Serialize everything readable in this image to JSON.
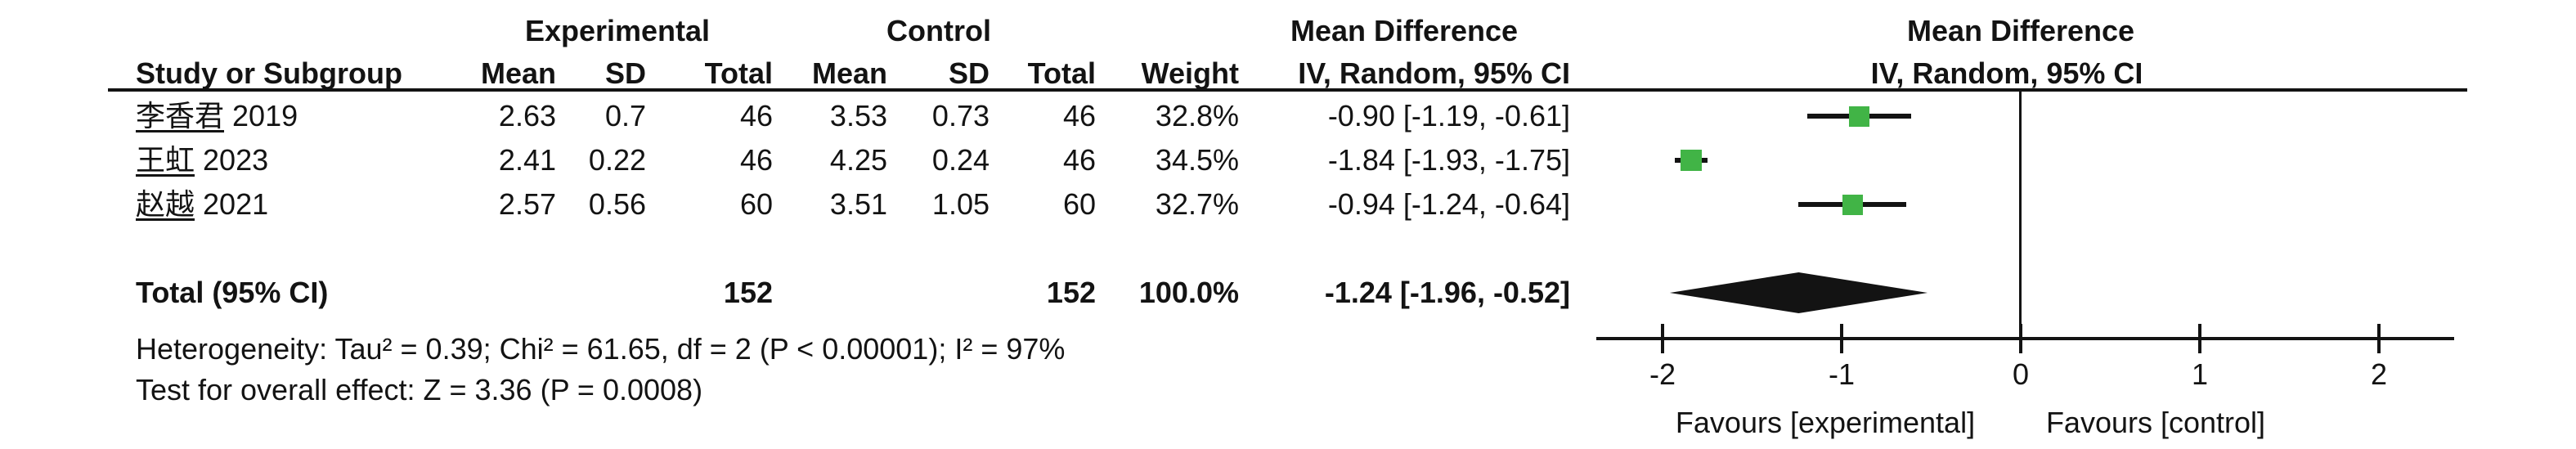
{
  "table": {
    "group_headers": {
      "experimental": "Experimental",
      "control": "Control",
      "md_table": "Mean Difference",
      "md_plot": "Mean Difference"
    },
    "col_headers": {
      "study": "Study or Subgroup",
      "mean_e": "Mean",
      "sd_e": "SD",
      "total_e": "Total",
      "mean_c": "Mean",
      "sd_c": "SD",
      "total_c": "Total",
      "weight": "Weight",
      "ci": "IV, Random, 95% CI",
      "ci_plot": "IV, Random, 95% CI"
    },
    "rows": [
      {
        "name": "李香君",
        "year": "2019",
        "mean_e": "2.63",
        "sd_e": "0.7",
        "total_e": "46",
        "mean_c": "3.53",
        "sd_c": "0.73",
        "total_c": "46",
        "weight": "32.8%",
        "ci": "-0.90 [-1.19, -0.61]"
      },
      {
        "name": "王虹",
        "year": "2023",
        "mean_e": "2.41",
        "sd_e": "0.22",
        "total_e": "46",
        "mean_c": "4.25",
        "sd_c": "0.24",
        "total_c": "46",
        "weight": "34.5%",
        "ci": "-1.84 [-1.93, -1.75]"
      },
      {
        "name": "赵越",
        "year": "2021",
        "mean_e": "2.57",
        "sd_e": "0.56",
        "total_e": "60",
        "mean_c": "3.51",
        "sd_c": "1.05",
        "total_c": "60",
        "weight": "32.7%",
        "ci": "-0.94 [-1.24, -0.64]"
      }
    ],
    "total_row": {
      "label": "Total (95% CI)",
      "total_e": "152",
      "total_c": "152",
      "weight": "100.0%",
      "ci": "-1.24 [-1.96, -0.52]"
    },
    "heterogeneity": "Heterogeneity: Tau² = 0.39; Chi² = 61.65, df = 2 (P < 0.00001); I² = 97%",
    "overall_effect": "Test for overall effect: Z = 3.36 (P = 0.0008)"
  },
  "chart_data": {
    "type": "forest",
    "effect_measure": "Mean Difference",
    "model": "IV, Random, 95% CI",
    "axis": {
      "min": -2,
      "max": 2,
      "ticks": [
        -2,
        -1,
        0,
        1,
        2
      ],
      "left_label": "Favours [experimental]",
      "right_label": "Favours [control]"
    },
    "studies": [
      {
        "name": "李香君 2019",
        "md": -0.9,
        "ci_low": -1.19,
        "ci_high": -0.61,
        "weight_pct": 32.8
      },
      {
        "name": "王虹 2023",
        "md": -1.84,
        "ci_low": -1.93,
        "ci_high": -1.75,
        "weight_pct": 34.5
      },
      {
        "name": "赵越 2021",
        "md": -0.94,
        "ci_low": -1.24,
        "ci_high": -0.64,
        "weight_pct": 32.7
      }
    ],
    "total": {
      "md": -1.24,
      "ci_low": -1.96,
      "ci_high": -0.52
    },
    "marker_color": "#41b446",
    "line_color": "#131313"
  }
}
